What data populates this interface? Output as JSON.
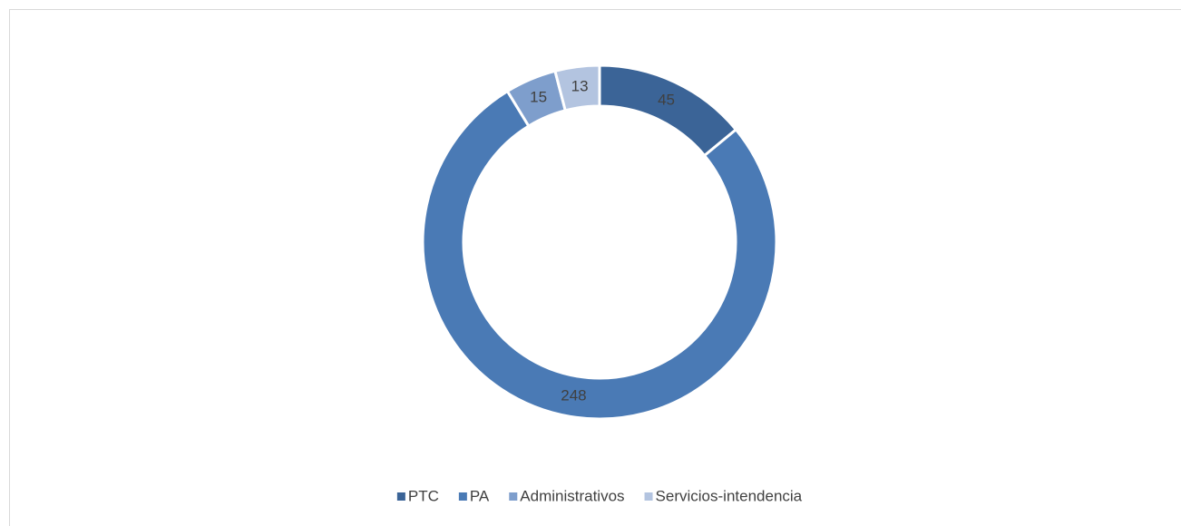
{
  "chart_data": {
    "type": "donut",
    "categories": [
      "PTC",
      "PA",
      "Administrativos",
      "Servicios-intendencia"
    ],
    "values": [
      45,
      248,
      15,
      13
    ],
    "colors": [
      "#3b6497",
      "#4a7ab5",
      "#7e9ecc",
      "#b3c4e0"
    ],
    "legend": "bottom"
  }
}
